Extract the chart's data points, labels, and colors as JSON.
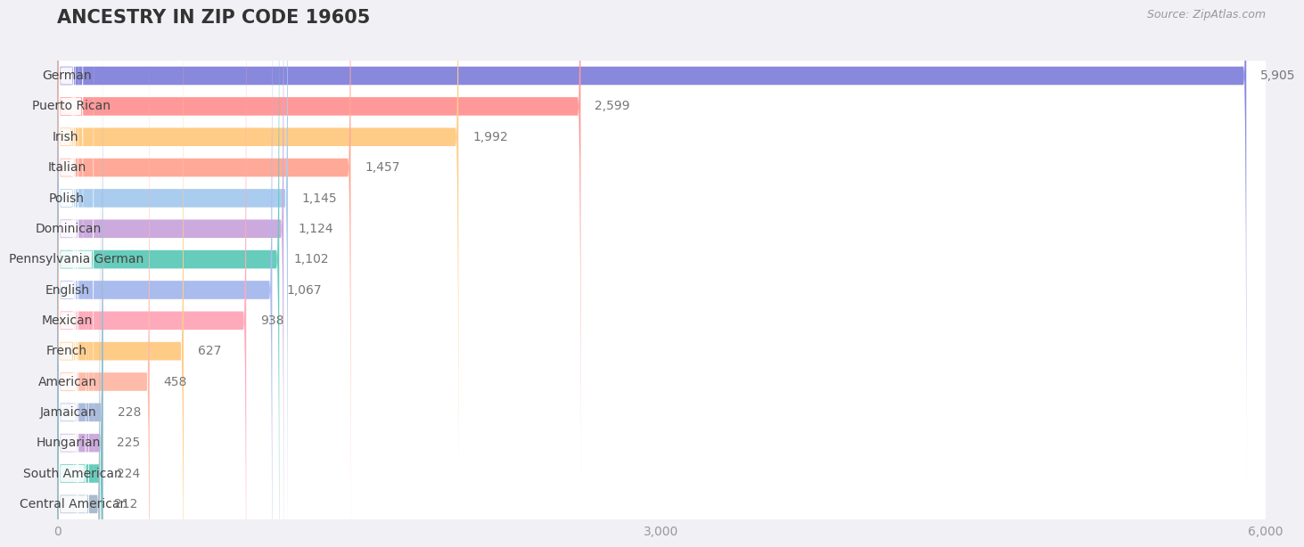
{
  "title": "ANCESTRY IN ZIP CODE 19605",
  "source_text": "Source: ZipAtlas.com",
  "categories": [
    "German",
    "Puerto Rican",
    "Irish",
    "Italian",
    "Polish",
    "Dominican",
    "Pennsylvania German",
    "English",
    "Mexican",
    "French",
    "American",
    "Jamaican",
    "Hungarian",
    "South American",
    "Central American"
  ],
  "values": [
    5905,
    2599,
    1992,
    1457,
    1145,
    1124,
    1102,
    1067,
    938,
    627,
    458,
    228,
    225,
    224,
    212
  ],
  "bar_colors": [
    "#8888dd",
    "#ff9999",
    "#ffcc88",
    "#ffaa99",
    "#aaccee",
    "#ccaadd",
    "#66ccbb",
    "#aabbee",
    "#ffaabb",
    "#ffcc88",
    "#ffbbaa",
    "#aabbdd",
    "#ccaadd",
    "#66ccbb",
    "#aabbcc"
  ],
  "xlim": [
    0,
    6000
  ],
  "xticks": [
    0,
    3000,
    6000
  ],
  "background_color": "#f0f0f5",
  "row_bg_color": "#ffffff",
  "title_fontsize": 15,
  "label_fontsize": 10,
  "value_fontsize": 10
}
